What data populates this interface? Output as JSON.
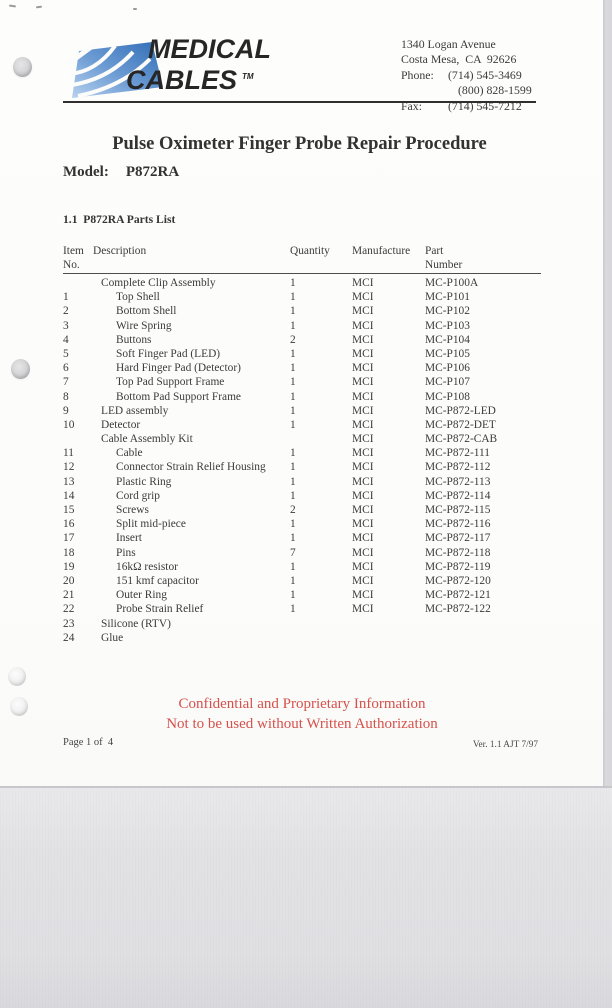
{
  "letterhead": {
    "logo_line1": "MEDICAL",
    "logo_line2": "CABLES",
    "logo_tm": "TM",
    "address_lines": [
      "1340 Logan Avenue",
      "Costa Mesa,  CA  92626"
    ],
    "phone_label": "Phone:",
    "phone_number1": "(714) 545-3469",
    "phone_number2": "(800) 828-1599",
    "fax_label": "Fax:",
    "fax_number": "(714) 545-7212"
  },
  "title": "Pulse Oximeter Finger Probe Repair Procedure",
  "model": {
    "label": "Model:",
    "value": "P872RA"
  },
  "section_heading": "1.1  P872RA Parts List",
  "parts_table": {
    "headers": {
      "item_line1": "Item",
      "item_line2": "No.",
      "description": "Description",
      "quantity": "Quantity",
      "manufacture": "Manufacture",
      "part_line1": "Part",
      "part_line2": "Number"
    },
    "rows": [
      {
        "item": "",
        "description": "Complete Clip Assembly",
        "indent": 1,
        "quantity": "1",
        "manufacture": "MCI",
        "part": "MC-P100A"
      },
      {
        "item": "1",
        "description": "Top Shell",
        "indent": 2,
        "quantity": "1",
        "manufacture": "MCI",
        "part": "MC-P101"
      },
      {
        "item": "2",
        "description": "Bottom Shell",
        "indent": 2,
        "quantity": "1",
        "manufacture": "MCI",
        "part": "MC-P102"
      },
      {
        "item": "3",
        "description": "Wire Spring",
        "indent": 2,
        "quantity": "1",
        "manufacture": "MCI",
        "part": "MC-P103"
      },
      {
        "item": "4",
        "description": "Buttons",
        "indent": 2,
        "quantity": "2",
        "manufacture": "MCI",
        "part": "MC-P104"
      },
      {
        "item": "5",
        "description": "Soft Finger Pad (LED)",
        "indent": 2,
        "quantity": "1",
        "manufacture": "MCI",
        "part": "MC-P105"
      },
      {
        "item": "6",
        "description": "Hard Finger Pad (Detector)",
        "indent": 2,
        "quantity": "1",
        "manufacture": "MCI",
        "part": "MC-P106"
      },
      {
        "item": "7",
        "description": "Top Pad Support Frame",
        "indent": 2,
        "quantity": "1",
        "manufacture": "MCI",
        "part": "MC-P107"
      },
      {
        "item": "8",
        "description": "Bottom Pad Support Frame",
        "indent": 2,
        "quantity": "1",
        "manufacture": "MCI",
        "part": "MC-P108"
      },
      {
        "item": "9",
        "description": "LED assembly",
        "indent": 1,
        "quantity": "1",
        "manufacture": "MCI",
        "part": "MC-P872-LED"
      },
      {
        "item": "10",
        "description": "Detector",
        "indent": 1,
        "quantity": "1",
        "manufacture": "MCI",
        "part": "MC-P872-DET"
      },
      {
        "item": "",
        "description": "Cable Assembly Kit",
        "indent": 1,
        "quantity": "",
        "manufacture": "MCI",
        "part": "MC-P872-CAB"
      },
      {
        "item": "11",
        "description": "Cable",
        "indent": 2,
        "quantity": "1",
        "manufacture": "MCI",
        "part": "MC-P872-111"
      },
      {
        "item": "12",
        "description": "Connector Strain Relief Housing",
        "indent": 2,
        "quantity": "1",
        "manufacture": "MCI",
        "part": "MC-P872-112"
      },
      {
        "item": "13",
        "description": "Plastic Ring",
        "indent": 2,
        "quantity": "1",
        "manufacture": "MCI",
        "part": "MC-P872-113"
      },
      {
        "item": "14",
        "description": "Cord grip",
        "indent": 2,
        "quantity": "1",
        "manufacture": "MCI",
        "part": "MC-P872-114"
      },
      {
        "item": "15",
        "description": "Screws",
        "indent": 2,
        "quantity": "2",
        "manufacture": "MCI",
        "part": "MC-P872-115"
      },
      {
        "item": "16",
        "description": "Split mid-piece",
        "indent": 2,
        "quantity": "1",
        "manufacture": "MCI",
        "part": "MC-P872-116"
      },
      {
        "item": "17",
        "description": "Insert",
        "indent": 2,
        "quantity": "1",
        "manufacture": "MCI",
        "part": "MC-P872-117"
      },
      {
        "item": "18",
        "description": "Pins",
        "indent": 2,
        "quantity": "7",
        "manufacture": "MCI",
        "part": "MC-P872-118"
      },
      {
        "item": "19",
        "description": "16kΩ resistor",
        "indent": 2,
        "quantity": "1",
        "manufacture": "MCI",
        "part": "MC-P872-119"
      },
      {
        "item": "20",
        "description": "151 kmf capacitor",
        "indent": 2,
        "quantity": "1",
        "manufacture": "MCI",
        "part": "MC-P872-120"
      },
      {
        "item": "21",
        "description": "Outer Ring",
        "indent": 2,
        "quantity": "1",
        "manufacture": "MCI",
        "part": "MC-P872-121"
      },
      {
        "item": "22",
        "description": "Probe Strain Relief",
        "indent": 2,
        "quantity": "1",
        "manufacture": "MCI",
        "part": "MC-P872-122"
      },
      {
        "item": "23",
        "description": "Silicone  (RTV)",
        "indent": 1,
        "quantity": "",
        "manufacture": "",
        "part": ""
      },
      {
        "item": "24",
        "description": "Glue",
        "indent": 1,
        "quantity": "",
        "manufacture": "",
        "part": ""
      }
    ]
  },
  "footer": {
    "confidential_line1": "Confidential and Proprietary Information",
    "confidential_line2": "Not to be used without Written Authorization",
    "page_info": "Page 1 of  4",
    "version_info": "Ver. 1.1 AJT 7/97"
  },
  "colors": {
    "accent_red": "#d5514d",
    "logo_blue_dark": "#2f6cb5",
    "logo_blue_light": "#9cc0e6",
    "scan_gray": "#e0e0e3",
    "text": "#3b3b3b"
  }
}
